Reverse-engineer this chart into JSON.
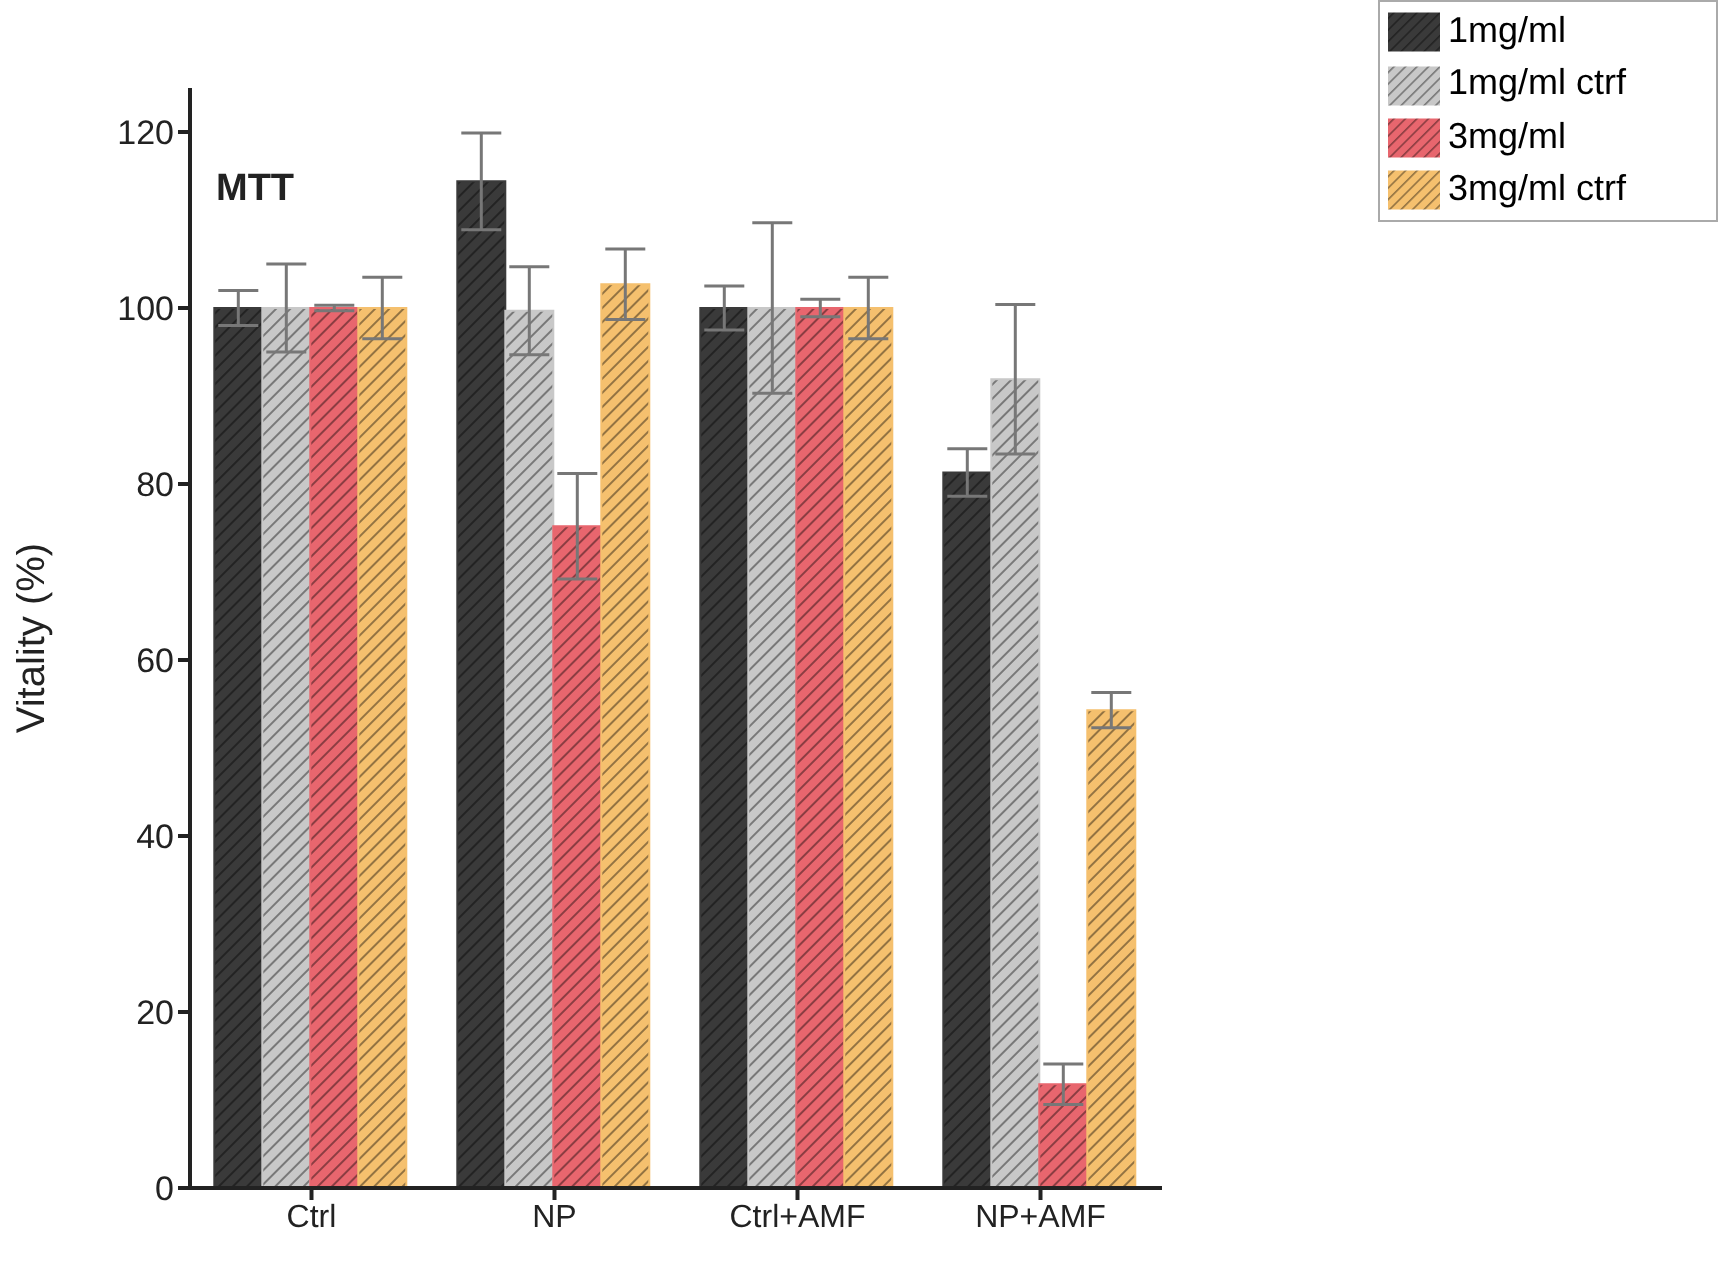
{
  "chart_data": {
    "type": "bar",
    "title": "MTT",
    "ylabel": "Vitality (%)",
    "categories": [
      "Ctrl",
      "NP",
      "Ctrl+AMF",
      "NP+AMF"
    ],
    "series": [
      {
        "name": "1mg/ml",
        "color": "#3a3a3a",
        "values": [
          100,
          114.4,
          100,
          81.3
        ],
        "errors": [
          2,
          5.5,
          2.5,
          2.7
        ]
      },
      {
        "name": "1mg/ml ctrf",
        "color": "#c8c8c8",
        "values": [
          100,
          99.7,
          100,
          91.9
        ],
        "errors": [
          5,
          5,
          9.7,
          8.5
        ]
      },
      {
        "name": "3mg/ml",
        "color": "#e8666e",
        "values": [
          100,
          75.2,
          100,
          11.8
        ],
        "errors": [
          0.3,
          6,
          1,
          2.3
        ]
      },
      {
        "name": "3mg/ml ctrf",
        "color": "#f5c06e",
        "values": [
          100,
          102.7,
          100,
          54.3
        ],
        "errors": [
          3.5,
          4,
          3.5,
          2
        ]
      }
    ],
    "ylim": [
      0,
      125
    ],
    "yticks": [
      0,
      20,
      40,
      60,
      80,
      100,
      120
    ],
    "grid": false,
    "legend": "top right"
  }
}
